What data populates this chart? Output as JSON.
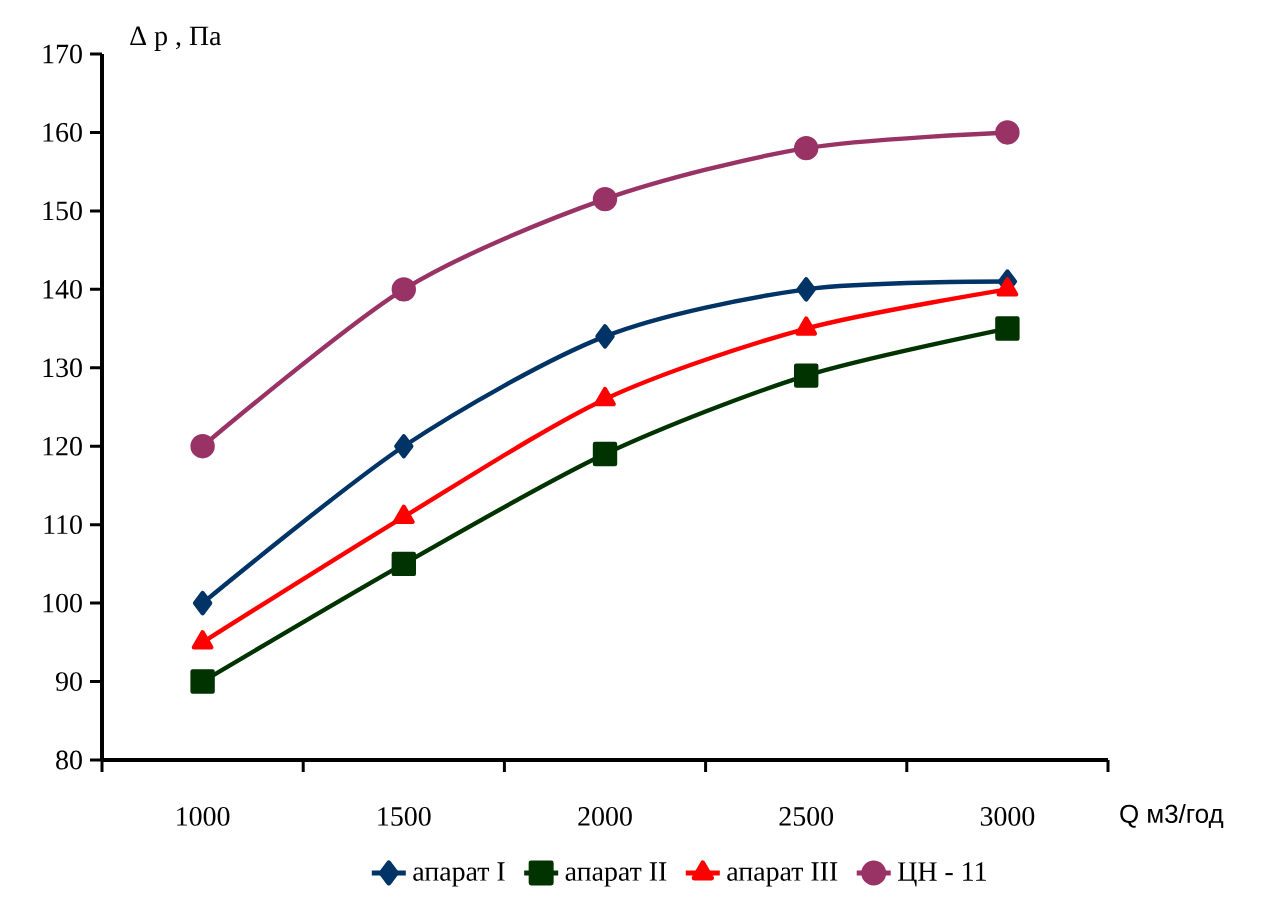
{
  "chart_data": {
    "type": "line",
    "xlabel": "Q м3/год",
    "ylabel": "Δ p , Па",
    "categories": [
      "1000",
      "1500",
      "2000",
      "2500",
      "3000"
    ],
    "series": [
      {
        "name": "апарат I",
        "color": "#003366",
        "marker": "diamond",
        "values": [
          100,
          120,
          134,
          140,
          141
        ]
      },
      {
        "name": "апарат II",
        "color": "#003300",
        "marker": "square",
        "values": [
          90,
          105,
          119,
          129,
          135
        ]
      },
      {
        "name": "апарат III",
        "color": "#ff0000",
        "marker": "triangle",
        "values": [
          95,
          111,
          126,
          135,
          140
        ]
      },
      {
        "name": "ЦН - 11",
        "color": "#993366",
        "marker": "circle",
        "values": [
          120,
          140,
          151.5,
          158,
          160
        ]
      }
    ],
    "ylim": [
      80,
      170
    ],
    "yticks": [
      80,
      90,
      100,
      110,
      120,
      130,
      140,
      150,
      160,
      170
    ],
    "grid": false,
    "legend": "bottom"
  }
}
